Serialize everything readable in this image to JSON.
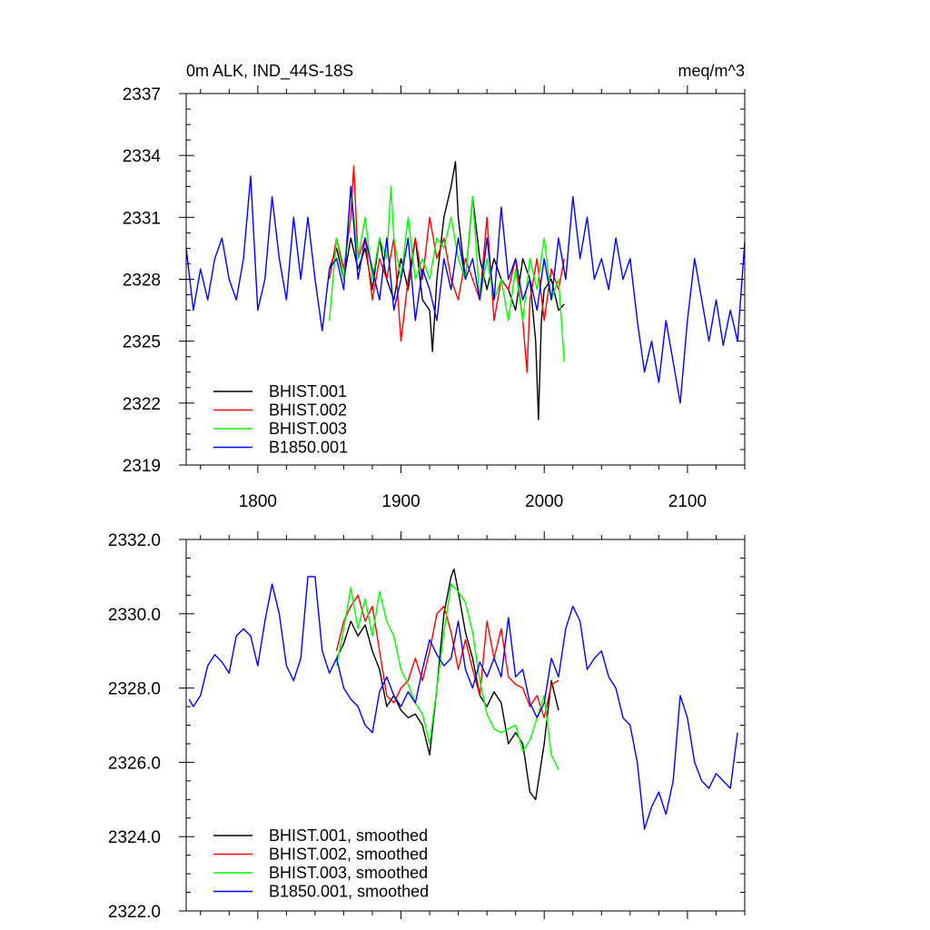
{
  "chart_data": [
    {
      "type": "line",
      "title_left": "0m ALK, IND_44S-18S",
      "title_right": "meq/m^3",
      "xlim": [
        1750,
        2140
      ],
      "ylim": [
        2319,
        2337
      ],
      "yticks": [
        2319,
        2322,
        2325,
        2328,
        2331,
        2334,
        2337
      ],
      "ytick_labels": [
        "2319",
        "2322",
        "2325",
        "2328",
        "2331",
        "2334",
        "2337"
      ],
      "xticks": [
        1800,
        1900,
        2000,
        2100
      ],
      "xtick_labels": [
        "1800",
        "1900",
        "2000",
        "2100"
      ],
      "legend_position": "bottom-left",
      "series": [
        {
          "name": "BHIST.001",
          "color": "#000000",
          "start": 1850,
          "end": 2014,
          "x": [
            1850,
            1855,
            1860,
            1865,
            1870,
            1875,
            1880,
            1885,
            1890,
            1895,
            1900,
            1905,
            1910,
            1915,
            1920,
            1922,
            1925,
            1930,
            1935,
            1938,
            1940,
            1945,
            1950,
            1955,
            1960,
            1965,
            1970,
            1975,
            1980,
            1985,
            1990,
            1994,
            1996,
            1998,
            2000,
            2005,
            2010,
            2014
          ],
          "values": [
            2328.5,
            2329.5,
            2328,
            2330,
            2328.5,
            2329.5,
            2327.5,
            2330,
            2328,
            2327,
            2329,
            2327.5,
            2330,
            2327,
            2326.5,
            2324.5,
            2328,
            2331,
            2332.5,
            2333.7,
            2331,
            2328,
            2332,
            2329,
            2327.5,
            2329,
            2328,
            2327.5,
            2326.5,
            2329,
            2328,
            2325,
            2321.2,
            2326,
            2327.5,
            2328,
            2326.5,
            2326.8
          ]
        },
        {
          "name": "BHIST.002",
          "color": "#ff0000",
          "start": 1850,
          "end": 2014,
          "x": [
            1850,
            1855,
            1860,
            1865,
            1867,
            1870,
            1875,
            1880,
            1885,
            1890,
            1895,
            1900,
            1905,
            1910,
            1915,
            1920,
            1925,
            1930,
            1935,
            1940,
            1945,
            1950,
            1955,
            1960,
            1965,
            1970,
            1975,
            1980,
            1985,
            1988,
            1990,
            1995,
            2000,
            2005,
            2010,
            2014
          ],
          "values": [
            2328,
            2330,
            2328.5,
            2331,
            2333.5,
            2329,
            2330,
            2327,
            2329,
            2328,
            2330,
            2325,
            2328,
            2330,
            2328,
            2331,
            2329,
            2330,
            2328,
            2327,
            2329,
            2328,
            2327,
            2331,
            2326,
            2328,
            2327.5,
            2329,
            2326,
            2323.5,
            2327,
            2329,
            2326,
            2328.5,
            2327.5,
            2329
          ]
        },
        {
          "name": "BHIST.003",
          "color": "#00ff00",
          "start": 1850,
          "end": 2014,
          "x": [
            1850,
            1855,
            1860,
            1865,
            1870,
            1875,
            1880,
            1885,
            1890,
            1893,
            1895,
            1900,
            1905,
            1910,
            1915,
            1920,
            1925,
            1930,
            1935,
            1940,
            1945,
            1950,
            1955,
            1960,
            1965,
            1970,
            1975,
            1980,
            1985,
            1990,
            1995,
            2000,
            2005,
            2010,
            2014
          ],
          "values": [
            2326,
            2330,
            2328,
            2332.5,
            2329,
            2331,
            2328,
            2330,
            2329,
            2332.5,
            2330,
            2328,
            2331,
            2328,
            2329,
            2328,
            2330,
            2329.5,
            2331,
            2329,
            2328,
            2332,
            2327,
            2329,
            2327,
            2328,
            2326,
            2328.5,
            2326,
            2329,
            2327.5,
            2330,
            2327,
            2328,
            2324
          ]
        },
        {
          "name": "B1850.001",
          "color": "#0000ff",
          "start": 1750,
          "end": 2140,
          "x": [
            1750,
            1755,
            1760,
            1765,
            1770,
            1775,
            1780,
            1785,
            1790,
            1795,
            1800,
            1805,
            1810,
            1815,
            1820,
            1825,
            1830,
            1835,
            1840,
            1845,
            1850,
            1855,
            1860,
            1865,
            1870,
            1875,
            1880,
            1885,
            1890,
            1895,
            1900,
            1905,
            1910,
            1915,
            1920,
            1925,
            1930,
            1935,
            1940,
            1945,
            1950,
            1955,
            1960,
            1965,
            1970,
            1975,
            1980,
            1985,
            1990,
            1995,
            2000,
            2005,
            2010,
            2015,
            2020,
            2025,
            2030,
            2035,
            2040,
            2045,
            2050,
            2055,
            2060,
            2065,
            2070,
            2075,
            2080,
            2085,
            2090,
            2095,
            2100,
            2105,
            2110,
            2115,
            2120,
            2125,
            2130,
            2135,
            2140
          ],
          "values": [
            2329.5,
            2326.5,
            2328.5,
            2327,
            2329,
            2330,
            2328,
            2327,
            2329,
            2333,
            2326.5,
            2328,
            2332,
            2329,
            2327,
            2331,
            2328,
            2331,
            2328,
            2325.5,
            2328.5,
            2329,
            2327.5,
            2332.5,
            2328,
            2330,
            2328.5,
            2327,
            2330,
            2326.5,
            2328,
            2330,
            2326,
            2328.5,
            2327.5,
            2326,
            2329,
            2327.5,
            2330,
            2328,
            2329,
            2327,
            2330,
            2327,
            2331.5,
            2328,
            2329,
            2327,
            2328,
            2326.5,
            2329,
            2327,
            2330,
            2328,
            2332,
            2329,
            2331,
            2328,
            2329,
            2327.5,
            2330,
            2328,
            2329,
            2326,
            2323.5,
            2325,
            2323,
            2326,
            2324,
            2322,
            2326,
            2329,
            2327,
            2325,
            2327,
            2324.8,
            2326.5,
            2325,
            2329.8
          ]
        }
      ]
    },
    {
      "type": "line",
      "xlim": [
        1750,
        2140
      ],
      "ylim": [
        2322,
        2332
      ],
      "yticks": [
        2322,
        2324,
        2326,
        2328,
        2330,
        2332
      ],
      "ytick_labels": [
        "2322.0",
        "2324.0",
        "2326.0",
        "2328.0",
        "2330.0",
        "2332.0"
      ],
      "xticks": [
        1800,
        1900,
        2000,
        2100
      ],
      "legend_position": "bottom-left",
      "series": [
        {
          "name": "BHIST.001, smoothed",
          "color": "#000000",
          "x": [
            1855,
            1860,
            1865,
            1870,
            1875,
            1880,
            1885,
            1890,
            1895,
            1900,
            1905,
            1910,
            1915,
            1920,
            1925,
            1930,
            1935,
            1937,
            1940,
            1945,
            1950,
            1955,
            1960,
            1965,
            1970,
            1975,
            1980,
            1985,
            1990,
            1994,
            2000,
            2005,
            2010
          ],
          "values": [
            2328.8,
            2329.2,
            2329.8,
            2329.4,
            2329.7,
            2329,
            2328.5,
            2327.5,
            2327.8,
            2327.4,
            2327.2,
            2327.3,
            2327.0,
            2326.2,
            2328,
            2330,
            2331,
            2331.2,
            2330.6,
            2329.5,
            2328.8,
            2327.8,
            2327.5,
            2327.9,
            2327.6,
            2326.5,
            2326.8,
            2326.5,
            2325.2,
            2325.0,
            2326.5,
            2328.2,
            2327.4
          ]
        },
        {
          "name": "BHIST.002, smoothed",
          "color": "#ff0000",
          "x": [
            1855,
            1860,
            1865,
            1870,
            1875,
            1880,
            1885,
            1890,
            1895,
            1900,
            1905,
            1910,
            1915,
            1920,
            1925,
            1930,
            1935,
            1940,
            1945,
            1950,
            1955,
            1960,
            1965,
            1970,
            1975,
            1980,
            1985,
            1990,
            1995,
            2000,
            2005,
            2010
          ],
          "values": [
            2329,
            2329.8,
            2330.2,
            2330.5,
            2329.8,
            2330.2,
            2329,
            2327.8,
            2327.6,
            2328,
            2328.2,
            2328.8,
            2328.2,
            2329,
            2330,
            2330.2,
            2329.5,
            2328.5,
            2329.3,
            2328.5,
            2327.8,
            2329.8,
            2328.8,
            2329.6,
            2328.3,
            2328.1,
            2328,
            2327.5,
            2327.8,
            2327.2,
            2328.1,
            2328.2
          ]
        },
        {
          "name": "BHIST.003, smoothed",
          "color": "#00ff00",
          "x": [
            1855,
            1860,
            1865,
            1870,
            1875,
            1880,
            1885,
            1890,
            1895,
            1900,
            1905,
            1910,
            1915,
            1920,
            1925,
            1930,
            1935,
            1940,
            1945,
            1950,
            1955,
            1960,
            1965,
            1970,
            1975,
            1980,
            1985,
            1990,
            1995,
            2000,
            2005,
            2010
          ],
          "values": [
            2328.6,
            2329.6,
            2330.7,
            2329.6,
            2330.4,
            2329.4,
            2330.6,
            2329.8,
            2329.4,
            2328.5,
            2328.1,
            2327.6,
            2327.3,
            2326.5,
            2328,
            2329.5,
            2330.8,
            2330.6,
            2330.3,
            2329.5,
            2328.2,
            2327.3,
            2326.9,
            2326.8,
            2326.9,
            2327.0,
            2326.3,
            2326.6,
            2327.2,
            2327.8,
            2326.2,
            2325.8
          ]
        },
        {
          "name": "B1850.001, smoothed",
          "color": "#0000ff",
          "x": [
            1752,
            1755,
            1760,
            1765,
            1770,
            1775,
            1780,
            1785,
            1790,
            1795,
            1800,
            1805,
            1810,
            1815,
            1820,
            1825,
            1830,
            1835,
            1840,
            1845,
            1850,
            1855,
            1860,
            1865,
            1870,
            1875,
            1880,
            1885,
            1890,
            1895,
            1900,
            1905,
            1910,
            1915,
            1920,
            1925,
            1930,
            1935,
            1940,
            1945,
            1950,
            1955,
            1960,
            1965,
            1970,
            1975,
            1980,
            1985,
            1990,
            1995,
            2000,
            2005,
            2010,
            2015,
            2020,
            2025,
            2030,
            2035,
            2040,
            2045,
            2050,
            2055,
            2060,
            2065,
            2070,
            2075,
            2080,
            2085,
            2090,
            2095,
            2100,
            2105,
            2110,
            2115,
            2120,
            2125,
            2130,
            2135
          ],
          "values": [
            2327.7,
            2327.5,
            2327.8,
            2328.6,
            2328.9,
            2328.7,
            2328.4,
            2329.4,
            2329.6,
            2329.4,
            2328.6,
            2329.8,
            2330.8,
            2330.0,
            2328.6,
            2328.2,
            2328.8,
            2331.0,
            2331.0,
            2329.0,
            2328.4,
            2328.8,
            2328.0,
            2327.7,
            2327.5,
            2327.0,
            2326.8,
            2327.9,
            2328.3,
            2327.8,
            2327.5,
            2327.9,
            2327.6,
            2328.5,
            2329.3,
            2328.9,
            2328.6,
            2328.8,
            2329.8,
            2328.5,
            2328.0,
            2328.7,
            2328.3,
            2328.8,
            2328.3,
            2329.9,
            2328.3,
            2328.5,
            2327.6,
            2327.2,
            2327.6,
            2328.8,
            2328.3,
            2329.6,
            2330.2,
            2329.8,
            2328.5,
            2328.8,
            2329.0,
            2328.3,
            2328.0,
            2327.2,
            2327.0,
            2326.0,
            2324.2,
            2324.8,
            2325.2,
            2324.6,
            2325.5,
            2327.8,
            2327.2,
            2326.0,
            2325.5,
            2325.3,
            2325.7,
            2325.5,
            2325.3,
            2326.8
          ]
        }
      ]
    }
  ]
}
